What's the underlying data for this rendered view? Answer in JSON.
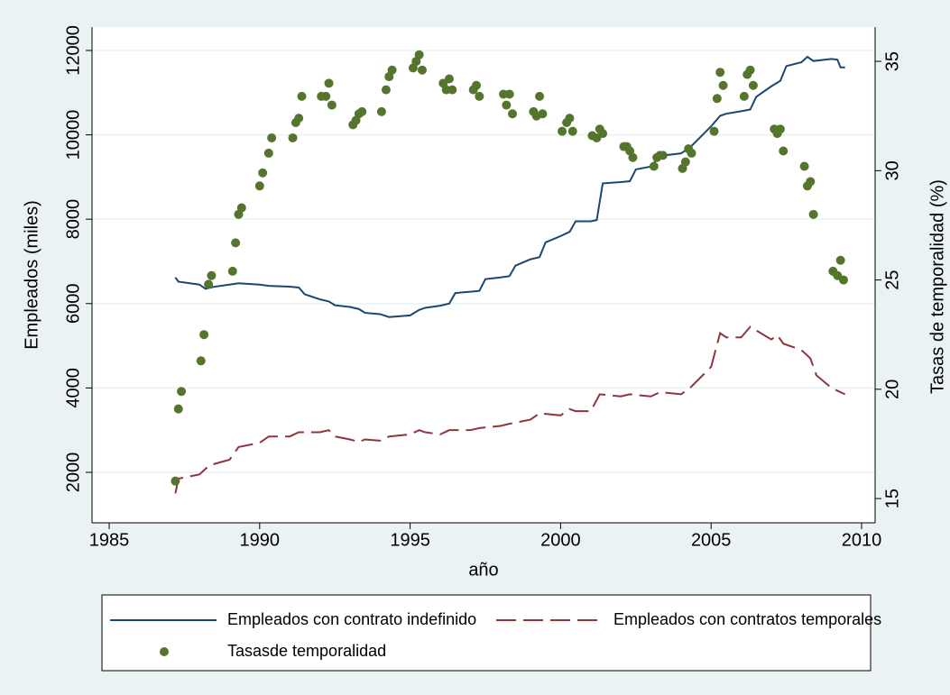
{
  "chart_data": {
    "type": "line",
    "xlabel": "año",
    "ylabel": "Empleados (miles)",
    "y2label": "Tasas de temporalidad (%)",
    "xlim": [
      1984.43,
      2010.45
    ],
    "xticks": [
      1985,
      1990,
      1995,
      2000,
      2005,
      2010
    ],
    "ylim": [
      803,
      12555
    ],
    "yticks": [
      2000,
      4000,
      6000,
      8000,
      10000,
      12000
    ],
    "y2lim": [
      13.89,
      36.57
    ],
    "y2ticks": [
      15,
      20,
      25,
      30,
      35
    ],
    "grid": true,
    "legend": "bottom",
    "series": [
      {
        "name": "Empleados con contrato indefinido",
        "color": "#1a476f",
        "style": "solid",
        "kind": "line",
        "x": [
          1987.2,
          1987.3,
          1988,
          1988.2,
          1988.5,
          1989,
          1989.3,
          1990,
          1990.3,
          1991,
          1991.3,
          1991.5,
          1992,
          1992.3,
          1992.5,
          1993,
          1993.3,
          1993.5,
          1994,
          1994.3,
          1995,
          1995.3,
          1995.5,
          1996,
          1996.3,
          1996.5,
          1997,
          1997.3,
          1997.5,
          1998,
          1998.3,
          1998.5,
          1999,
          1999.3,
          1999.5,
          2000,
          2000.3,
          2000.5,
          2001,
          2001.2,
          2001.4,
          2002,
          2002.3,
          2002.5,
          2003,
          2003.3,
          2004,
          2004.3,
          2005,
          2005.3,
          2005.5,
          2006,
          2006.3,
          2006.5,
          2007,
          2007.3,
          2007.5,
          2008,
          2008.2,
          2008.4,
          2009,
          2009.2,
          2009.3,
          2009.45
        ],
        "values": [
          6620,
          6520,
          6450,
          6350,
          6400,
          6450,
          6480,
          6450,
          6420,
          6400,
          6380,
          6220,
          6100,
          6050,
          5960,
          5920,
          5870,
          5780,
          5750,
          5680,
          5720,
          5850,
          5900,
          5950,
          6000,
          6250,
          6280,
          6300,
          6580,
          6620,
          6650,
          6900,
          7050,
          7100,
          7450,
          7600,
          7700,
          7950,
          7950,
          7980,
          8850,
          8880,
          8900,
          9180,
          9250,
          9500,
          9560,
          9700,
          10200,
          10450,
          10500,
          10560,
          10600,
          10900,
          11150,
          11280,
          11630,
          11720,
          11850,
          11750,
          11800,
          11780,
          11600,
          11600
        ]
      },
      {
        "name": "Empleados con contratos temporales",
        "color": "#90353b",
        "style": "dashed",
        "kind": "line",
        "x": [
          1987.2,
          1987.3,
          1988,
          1988.3,
          1988.5,
          1989,
          1989.3,
          1990,
          1990.3,
          1991,
          1991.3,
          1992,
          1992.3,
          1992.5,
          1993,
          1993.3,
          1993.5,
          1994,
          1994.3,
          1995,
          1995.3,
          1995.5,
          1996,
          1996.3,
          1997,
          1997.3,
          1998,
          1998.3,
          1999,
          1999.3,
          2000,
          2000.3,
          2000.5,
          2001,
          2001.3,
          2002,
          2002.3,
          2003,
          2003.3,
          2004,
          2004.3,
          2005,
          2005.3,
          2005.5,
          2006,
          2006.3,
          2007,
          2007.2,
          2007.4,
          2008,
          2008.3,
          2008.5,
          2009,
          2009.3,
          2009.45
        ],
        "values": [
          1500,
          1850,
          1950,
          2150,
          2200,
          2300,
          2600,
          2700,
          2850,
          2850,
          2950,
          2950,
          3000,
          2850,
          2780,
          2720,
          2780,
          2750,
          2850,
          2900,
          3000,
          2950,
          2900,
          3000,
          3000,
          3050,
          3100,
          3150,
          3250,
          3400,
          3350,
          3500,
          3450,
          3450,
          3850,
          3800,
          3850,
          3800,
          3900,
          3850,
          4000,
          4500,
          5300,
          5200,
          5200,
          5450,
          5150,
          5250,
          5050,
          4900,
          4700,
          4300,
          4000,
          3900,
          3850
        ]
      },
      {
        "name": "Tasasde temporalidad",
        "color": "#55752f",
        "kind": "scatter",
        "axis": "y2",
        "x": [
          1987.2,
          1987.3,
          1987.4,
          1988.05,
          1988.15,
          1988.3,
          1988.4,
          1989.1,
          1989.2,
          1989.3,
          1989.4,
          1990,
          1990.1,
          1990.3,
          1990.4,
          1991.1,
          1991.2,
          1991.3,
          1991.4,
          1992.05,
          1992.2,
          1992.3,
          1992.4,
          1993.1,
          1993.2,
          1993.3,
          1993.4,
          1994.05,
          1994.2,
          1994.3,
          1994.4,
          1995.1,
          1995.2,
          1995.3,
          1995.4,
          1996.1,
          1996.2,
          1996.3,
          1996.4,
          1997.1,
          1997.2,
          1997.3,
          1998.1,
          1998.2,
          1998.3,
          1998.4,
          1999.1,
          1999.2,
          1999.3,
          1999.4,
          2000.05,
          2000.2,
          2000.3,
          2000.4,
          2001.05,
          2001.2,
          2001.3,
          2001.4,
          2002.1,
          2002.2,
          2002.3,
          2002.4,
          2003.1,
          2003.2,
          2003.3,
          2003.4,
          2004.05,
          2004.15,
          2004.25,
          2004.35,
          2005.1,
          2005.2,
          2005.3,
          2005.4,
          2006.1,
          2006.2,
          2006.3,
          2006.4,
          2007.1,
          2007.2,
          2007.3,
          2007.4,
          2008.1,
          2008.2,
          2008.3,
          2008.4,
          2009.05,
          2009.2,
          2009.3,
          2009.4
        ],
        "values": [
          15.8,
          19.1,
          19.9,
          21.3,
          22.5,
          24.8,
          25.2,
          25.4,
          26.7,
          28,
          28.3,
          29.3,
          29.9,
          30.8,
          31.5,
          31.5,
          32.2,
          32.4,
          33.4,
          33.4,
          33.4,
          34,
          33,
          32.1,
          32.3,
          32.6,
          32.7,
          32.7,
          33.7,
          34.3,
          34.6,
          34.7,
          35,
          35.3,
          34.6,
          34,
          33.7,
          34.2,
          33.7,
          33.7,
          33.9,
          33.4,
          33.5,
          33,
          33.5,
          32.6,
          32.7,
          32.5,
          33.4,
          32.6,
          31.8,
          32.2,
          32.4,
          31.8,
          31.6,
          31.5,
          31.9,
          31.7,
          31.1,
          31.1,
          30.9,
          30.6,
          30.2,
          30.6,
          30.7,
          30.7,
          30.1,
          30.4,
          31,
          30.8,
          31.8,
          33.3,
          34.5,
          33.9,
          33.4,
          34.4,
          34.6,
          33.9,
          31.9,
          31.7,
          31.9,
          30.9,
          30.2,
          29.3,
          29.5,
          28,
          25.4,
          25.2,
          25.9,
          25
        ]
      }
    ]
  }
}
